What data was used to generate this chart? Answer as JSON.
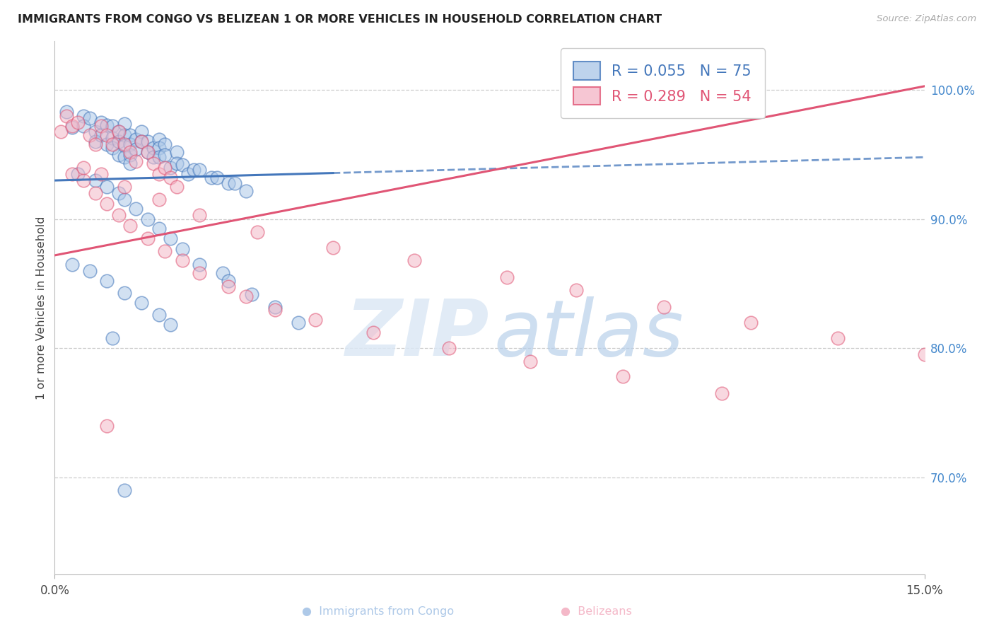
{
  "title": "IMMIGRANTS FROM CONGO VS BELIZEAN 1 OR MORE VEHICLES IN HOUSEHOLD CORRELATION CHART",
  "source": "Source: ZipAtlas.com",
  "ylabel": "1 or more Vehicles in Household",
  "xmin": 0.0,
  "xmax": 0.15,
  "ymin": 0.625,
  "ymax": 1.038,
  "yticks": [
    0.7,
    0.8,
    0.9,
    1.0
  ],
  "ytick_labels": [
    "70.0%",
    "80.0%",
    "90.0%",
    "100.0%"
  ],
  "xtick_labels": [
    "0.0%",
    "15.0%"
  ],
  "legend_r1": "R = 0.055",
  "legend_n1": "N = 75",
  "legend_r2": "R = 0.289",
  "legend_n2": "N = 54",
  "color_blue_fill": "#aec9e8",
  "color_pink_fill": "#f4b8c8",
  "color_blue_edge": "#4477bb",
  "color_pink_edge": "#e05575",
  "color_ytick_label": "#4488cc",
  "background": "#ffffff",
  "grid_color": "#cccccc",
  "congo_trend_x0": 0.0,
  "congo_trend_y0": 0.93,
  "congo_trend_x1": 0.15,
  "congo_trend_y1": 0.948,
  "congo_solid_xend": 0.048,
  "beliz_trend_x0": 0.0,
  "beliz_trend_y0": 0.872,
  "beliz_trend_x1": 0.15,
  "beliz_trend_y1": 1.003,
  "congo_x": [
    0.002,
    0.003,
    0.005,
    0.005,
    0.006,
    0.007,
    0.007,
    0.008,
    0.008,
    0.009,
    0.009,
    0.01,
    0.01,
    0.01,
    0.011,
    0.011,
    0.011,
    0.012,
    0.012,
    0.012,
    0.012,
    0.013,
    0.013,
    0.013,
    0.013,
    0.014,
    0.014,
    0.015,
    0.015,
    0.016,
    0.016,
    0.017,
    0.017,
    0.018,
    0.018,
    0.018,
    0.019,
    0.019,
    0.02,
    0.021,
    0.021,
    0.022,
    0.023,
    0.024,
    0.025,
    0.027,
    0.028,
    0.03,
    0.031,
    0.033,
    0.004,
    0.007,
    0.009,
    0.011,
    0.012,
    0.014,
    0.016,
    0.018,
    0.02,
    0.022,
    0.025,
    0.029,
    0.03,
    0.034,
    0.038,
    0.042,
    0.003,
    0.006,
    0.009,
    0.012,
    0.015,
    0.018,
    0.02,
    0.01,
    0.012
  ],
  "congo_y": [
    0.983,
    0.971,
    0.98,
    0.972,
    0.978,
    0.968,
    0.96,
    0.975,
    0.965,
    0.973,
    0.958,
    0.972,
    0.963,
    0.955,
    0.968,
    0.96,
    0.95,
    0.974,
    0.965,
    0.957,
    0.948,
    0.965,
    0.958,
    0.95,
    0.943,
    0.962,
    0.954,
    0.968,
    0.96,
    0.96,
    0.952,
    0.955,
    0.948,
    0.962,
    0.955,
    0.948,
    0.958,
    0.95,
    0.94,
    0.952,
    0.943,
    0.942,
    0.935,
    0.938,
    0.938,
    0.932,
    0.932,
    0.928,
    0.928,
    0.922,
    0.935,
    0.93,
    0.925,
    0.92,
    0.915,
    0.908,
    0.9,
    0.893,
    0.885,
    0.877,
    0.865,
    0.858,
    0.852,
    0.842,
    0.832,
    0.82,
    0.865,
    0.86,
    0.852,
    0.843,
    0.835,
    0.826,
    0.818,
    0.808,
    0.69
  ],
  "beliz_x": [
    0.001,
    0.002,
    0.003,
    0.004,
    0.006,
    0.007,
    0.008,
    0.009,
    0.01,
    0.011,
    0.012,
    0.013,
    0.014,
    0.015,
    0.016,
    0.017,
    0.018,
    0.019,
    0.02,
    0.021,
    0.003,
    0.005,
    0.007,
    0.009,
    0.011,
    0.013,
    0.016,
    0.019,
    0.022,
    0.025,
    0.03,
    0.033,
    0.038,
    0.045,
    0.055,
    0.068,
    0.082,
    0.098,
    0.115,
    0.005,
    0.008,
    0.012,
    0.018,
    0.025,
    0.035,
    0.048,
    0.062,
    0.078,
    0.09,
    0.105,
    0.12,
    0.135,
    0.15,
    0.009
  ],
  "beliz_y": [
    0.968,
    0.98,
    0.972,
    0.975,
    0.965,
    0.958,
    0.972,
    0.965,
    0.958,
    0.968,
    0.958,
    0.952,
    0.945,
    0.96,
    0.952,
    0.943,
    0.935,
    0.94,
    0.932,
    0.925,
    0.935,
    0.93,
    0.92,
    0.912,
    0.903,
    0.895,
    0.885,
    0.875,
    0.868,
    0.858,
    0.848,
    0.84,
    0.83,
    0.822,
    0.812,
    0.8,
    0.79,
    0.778,
    0.765,
    0.94,
    0.935,
    0.925,
    0.915,
    0.903,
    0.89,
    0.878,
    0.868,
    0.855,
    0.845,
    0.832,
    0.82,
    0.808,
    0.795,
    0.74
  ]
}
